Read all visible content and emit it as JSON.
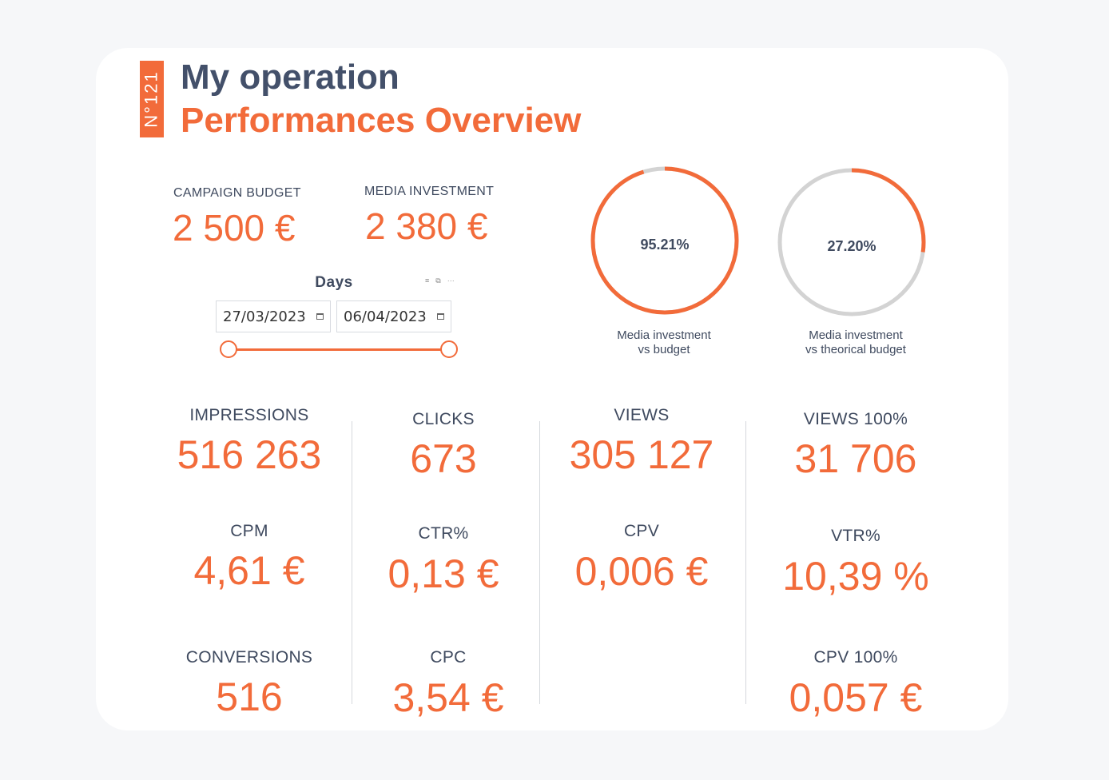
{
  "header": {
    "badge": "N°121",
    "title": "My operation",
    "subtitle": "Performances Overview"
  },
  "budget": {
    "campaign_label": "CAMPAIGN BUDGET",
    "campaign_value": "2 500 €",
    "media_label": "MEDIA INVESTMENT",
    "media_value": "2 380 €"
  },
  "days_filter": {
    "title": "Days",
    "start_date": "27/03/2023",
    "end_date": "06/04/2023",
    "range_start_fraction": 0,
    "range_end_fraction": 1,
    "toolbar_icons": [
      "filter-icon",
      "focus-mode-icon",
      "more-options-icon"
    ]
  },
  "gauges": [
    {
      "value_text": "95.21%",
      "fraction": 0.9521,
      "label_line1": "Media investment",
      "label_line2": "vs budget"
    },
    {
      "value_text": "27.20%",
      "fraction": 0.272,
      "label_line1": "Media investment",
      "label_line2": "vs theorical budget"
    }
  ],
  "kpis": {
    "impressions": {
      "label": "IMPRESSIONS",
      "value": "516 263"
    },
    "clicks": {
      "label": "CLICKS",
      "value": "673"
    },
    "views": {
      "label": "VIEWS",
      "value": "305 127"
    },
    "views100": {
      "label": "VIEWS 100%",
      "value": "31 706"
    },
    "cpm": {
      "label": "CPM",
      "value": "4,61 €"
    },
    "ctr": {
      "label": "CTR%",
      "value": "0,13 €"
    },
    "cpv": {
      "label": "CPV",
      "value": "0,006 €"
    },
    "vtr": {
      "label": "VTR%",
      "value": "10,39 %"
    },
    "conversions": {
      "label": "CONVERSIONS",
      "value": "516"
    },
    "cpc": {
      "label": "CPC",
      "value": "3,54 €"
    },
    "cpv100": {
      "label": "CPV 100%",
      "value": "0,057 €"
    }
  },
  "colors": {
    "accent": "#f26b3a",
    "text": "#3f4a5f",
    "ring_track": "#d3d3d3"
  }
}
